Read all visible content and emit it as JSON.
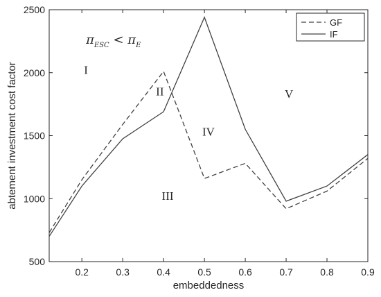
{
  "chart_data": {
    "type": "line",
    "title": "",
    "xlabel": "embeddedness",
    "ylabel": "abtement investment cost factor",
    "xlim": [
      0.12,
      0.9
    ],
    "ylim": [
      500,
      2500
    ],
    "xticks": [
      "0.2",
      "0.3",
      "0.4",
      "0.5",
      "0.6",
      "0.7",
      "0.8",
      "0.9"
    ],
    "yticks": [
      "500",
      "1000",
      "1500",
      "2000",
      "2500"
    ],
    "grid": false,
    "legend_position": "top-right",
    "series": [
      {
        "name": "GF",
        "style": "dashed",
        "color": "#404040",
        "x": [
          0.12,
          0.2,
          0.3,
          0.4,
          0.5,
          0.6,
          0.7,
          0.8,
          0.9
        ],
        "y": [
          730,
          1150,
          1590,
          2010,
          1160,
          1280,
          920,
          1060,
          1320
        ]
      },
      {
        "name": "IF",
        "style": "solid",
        "color": "#404040",
        "x": [
          0.12,
          0.2,
          0.3,
          0.4,
          0.5,
          0.6,
          0.7,
          0.8,
          0.9
        ],
        "y": [
          700,
          1100,
          1475,
          1690,
          2440,
          1550,
          980,
          1100,
          1350
        ]
      }
    ],
    "annotations": {
      "condition": {
        "pi1": "π",
        "sub1": "ESC",
        "op": " < ",
        "pi2": "π",
        "sub2": "E",
        "x": 0.21,
        "y": 2230
      },
      "regions": [
        {
          "label": "I",
          "x": 0.21,
          "y": 1990
        },
        {
          "label": "II",
          "x": 0.391,
          "y": 1820
        },
        {
          "label": "III",
          "x": 0.41,
          "y": 990
        },
        {
          "label": "IV",
          "x": 0.51,
          "y": 1500
        },
        {
          "label": "V",
          "x": 0.707,
          "y": 1800
        }
      ]
    }
  }
}
